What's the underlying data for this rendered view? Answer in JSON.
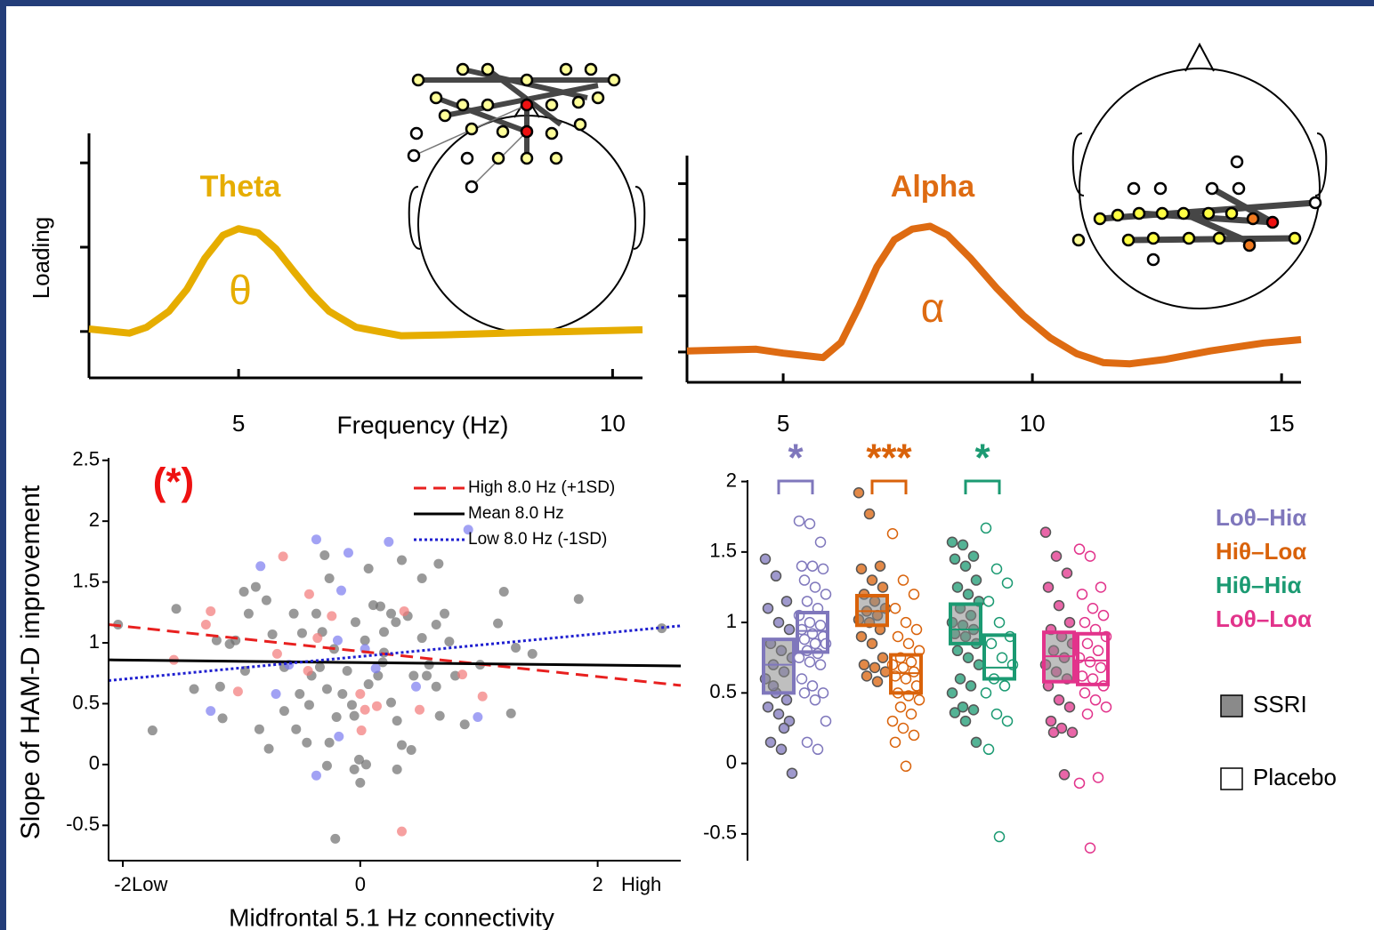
{
  "chart_data": [
    {
      "type": "line",
      "title": "Theta",
      "symbol": "θ",
      "ylabel": "Loading",
      "xlabel": "Frequency (Hz)",
      "color": "#e6ad00",
      "x": [
        3.0,
        3.54,
        3.77,
        4.07,
        4.31,
        4.55,
        4.79,
        5.0,
        5.26,
        5.5,
        5.74,
        5.98,
        6.21,
        6.57,
        7.17,
        7.76,
        8.95,
        10.4
      ],
      "values": [
        0.03,
        -0.02,
        0.05,
        0.24,
        0.5,
        0.87,
        1.14,
        1.22,
        1.17,
        0.98,
        0.71,
        0.45,
        0.24,
        0.05,
        -0.05,
        -0.04,
        -0.01,
        0.02
      ],
      "xlim": [
        3,
        10.4
      ],
      "xticks": [
        5,
        10
      ],
      "ylim": [
        -0.55,
        2.35
      ],
      "yticks": [
        0,
        1,
        2
      ]
    },
    {
      "type": "line",
      "title": "Alpha",
      "symbol": "α",
      "color": "#de6b12",
      "x": [
        3.07,
        4.46,
        5.0,
        5.8,
        6.16,
        6.52,
        6.88,
        7.23,
        7.59,
        7.95,
        8.3,
        8.75,
        9.29,
        9.82,
        10.36,
        10.89,
        11.43,
        11.96,
        12.68,
        13.57,
        14.64,
        15.39
      ],
      "values": [
        0.02,
        0.05,
        -0.02,
        -0.1,
        0.17,
        0.81,
        1.52,
        2.0,
        2.19,
        2.24,
        2.08,
        1.68,
        1.13,
        0.65,
        0.25,
        -0.03,
        -0.19,
        -0.21,
        -0.13,
        0.02,
        0.16,
        0.22
      ],
      "xlim": [
        3.07,
        15.39
      ],
      "xticks": [
        5,
        10,
        15
      ],
      "ylim": [
        -0.54,
        3.5
      ],
      "yticks": [
        0,
        1,
        2,
        3
      ]
    },
    {
      "type": "scatter",
      "ylabel": "Slope of HAM-D improvement",
      "xlabel": "Midfrontal 5.1 Hz connectivity",
      "annotation": "(*)",
      "x_low_label": "Low",
      "x_high_label": "High",
      "xlim": [
        -2.12,
        2.7
      ],
      "xticks": [
        -2,
        0,
        2
      ],
      "ylim": [
        -0.79,
        2.52
      ],
      "yticks": [
        -0.5,
        0,
        0.5,
        1,
        1.5,
        2,
        2.5
      ],
      "points": [
        {
          "color": "#6e6e6e",
          "x": [
            -2.04,
            -1.75,
            -1.55,
            -1.4,
            -1.18,
            -1.1,
            -0.98,
            -0.88,
            -0.79,
            -0.94,
            -0.85,
            -0.77,
            -0.74,
            -0.64,
            -0.56,
            -0.49,
            -0.51,
            -0.43,
            -0.54,
            -0.45,
            -0.3,
            -0.26,
            -0.37,
            -0.32,
            -0.22,
            -0.34,
            -0.28,
            -0.2,
            -0.28,
            -0.21,
            -0.11,
            -0.07,
            -0.05,
            -0.01,
            0,
            -0.05,
            0.05,
            0.07,
            0.11,
            0.17,
            0.2,
            0.26,
            0.3,
            0.2,
            0.15,
            0.26,
            0.31,
            0.35,
            0.43,
            0.31,
            0.35,
            0.4,
            0.52,
            0.66,
            0.64,
            0.52,
            0.58,
            0.64,
            0.67,
            0.75,
            0.8,
            0.88,
            1.01,
            1.16,
            1.21,
            1.27,
            1.31,
            1.45,
            1.84,
            2.54,
            0.56,
            0.71,
            0.19,
            0.07,
            0.45,
            -0.41,
            -0.64,
            -0.97,
            -1.05,
            -1.21,
            -1.16,
            -0.26,
            -0.15,
            0.04,
            -0.04
          ],
          "y": [
            1.15,
            0.28,
            1.28,
            0.62,
            0.64,
            0.99,
            1.42,
            1.46,
            1.35,
            1.24,
            0.29,
            0.13,
            1.07,
            0.44,
            1.24,
            1.08,
            0.58,
            0.49,
            0.29,
            0.18,
            1.72,
            1.53,
            1.24,
            1.09,
            0.95,
            0.8,
            0.62,
            0.39,
            -0.01,
            -0.61,
            0.77,
            0.49,
            0.4,
            0.04,
            -0.15,
            -0.04,
            0,
            1.61,
            1.31,
            1.3,
            1.09,
            1.24,
            1.17,
            0.92,
            0.73,
            0.51,
            0.36,
            0.16,
            0.12,
            -0.04,
            1.68,
            1.22,
            1.53,
            1.65,
            1.15,
            1.04,
            0.82,
            0.64,
            0.4,
            1.01,
            0.73,
            0.33,
            0.82,
            1.16,
            1.42,
            0.42,
            0.96,
            0.91,
            1.36,
            1.12,
            0.73,
            1.24,
            0.84,
            0.66,
            0.73,
            0.73,
            0.8,
            0.77,
            1.02,
            1.02,
            0.38,
            0.18,
            0.58,
            1.02,
            1.17
          ]
        },
        {
          "color": "#f27878",
          "x": [
            -0.65,
            -1.26,
            -1.3,
            -0.43,
            -0.24,
            -1.57,
            -1.03,
            -0.44,
            0,
            0.37,
            0.04,
            0.5,
            0.14,
            0.86,
            1.03,
            0.35,
            -0.36,
            0.01,
            -0.7
          ],
          "y": [
            1.71,
            1.26,
            1.15,
            1.4,
            1.22,
            0.86,
            0.6,
            0.77,
            0.58,
            1.26,
            0.45,
            0.45,
            0.48,
            0.74,
            0.56,
            -0.55,
            1.04,
            0.28,
            0.91
          ]
        },
        {
          "color": "#7b7bf0",
          "x": [
            -0.37,
            -0.1,
            0.24,
            -0.84,
            -0.16,
            0.91,
            -0.19,
            0.04,
            0.13,
            -0.71,
            0.47,
            -0.18,
            -0.37,
            -1.26,
            0.99,
            -0.6
          ],
          "y": [
            1.85,
            1.74,
            1.83,
            1.63,
            1.43,
            1.93,
            1.02,
            0.95,
            0.79,
            0.58,
            0.64,
            0.23,
            -0.09,
            0.44,
            0.39,
            0.82
          ]
        }
      ],
      "series": [
        {
          "name": "High 8.0 Hz (+1SD)",
          "color": "#e8201f",
          "dash": "dashed",
          "x": [
            -2.12,
            2.7
          ],
          "values": [
            1.15,
            0.65
          ]
        },
        {
          "name": "Mean 8.0 Hz",
          "color": "#000000",
          "dash": "solid",
          "x": [
            -2.12,
            2.7
          ],
          "values": [
            0.86,
            0.81
          ]
        },
        {
          "name": "Low 8.0 Hz (-1SD)",
          "color": "#1f1fd0",
          "dash": "dotted",
          "x": [
            -2.12,
            2.7
          ],
          "values": [
            0.69,
            1.14
          ]
        }
      ]
    },
    {
      "type": "box",
      "ylim": [
        -0.69,
        2.01
      ],
      "yticks": [
        -0.5,
        0,
        0.5,
        1,
        1.5,
        2
      ],
      "categories": [
        "Loθ–Hiα",
        "Hiθ–Loα",
        "Hiθ–Hiα",
        "Loθ–Loα"
      ],
      "colors": [
        "#7f77bc",
        "#d9620a",
        "#1b9a72",
        "#e2338b"
      ],
      "significance": [
        "*",
        "***",
        "*",
        null
      ],
      "series": [
        {
          "name": "SSRI",
          "fill": "#8a8a8a",
          "mean": [
            0.7,
            1.08,
            0.95,
            0.76
          ],
          "lower": [
            0.5,
            0.98,
            0.85,
            0.58
          ],
          "upper": [
            0.88,
            1.19,
            1.13,
            0.93
          ],
          "points": [
            [
              1.45,
              1.33,
              1.15,
              1.1,
              1.0,
              0.95,
              0.85,
              0.8,
              0.75,
              0.7,
              0.65,
              0.6,
              0.5,
              0.45,
              0.4,
              0.35,
              0.3,
              0.15,
              0.1,
              -0.07,
              0.55,
              0.25
            ],
            [
              1.92,
              1.77,
              1.4,
              1.38,
              1.3,
              1.25,
              1.2,
              1.15,
              1.1,
              1.08,
              1.05,
              1.02,
              1.0,
              0.95,
              0.9,
              0.85,
              0.75,
              0.7,
              0.68,
              0.65,
              0.62,
              0.58
            ],
            [
              1.57,
              1.55,
              1.47,
              1.45,
              1.4,
              1.3,
              1.25,
              1.2,
              1.15,
              1.1,
              1.05,
              1.0,
              0.98,
              0.95,
              0.92,
              0.9,
              0.85,
              0.8,
              0.75,
              0.7,
              0.6,
              0.55,
              0.5,
              0.4,
              0.38,
              0.36,
              0.3,
              0.15
            ],
            [
              1.64,
              1.47,
              1.35,
              1.25,
              1.12,
              1.0,
              0.95,
              0.9,
              0.85,
              0.8,
              0.75,
              0.7,
              0.65,
              0.6,
              0.55,
              0.45,
              0.4,
              0.3,
              0.25,
              0.22,
              0.22,
              -0.08
            ]
          ]
        },
        {
          "name": "Placebo",
          "fill": "#ffffff",
          "mean": [
            0.94,
            0.64,
            0.68,
            0.73
          ],
          "lower": [
            0.79,
            0.5,
            0.6,
            0.56
          ],
          "upper": [
            1.07,
            0.77,
            0.91,
            0.92
          ],
          "points": [
            [
              1.72,
              1.7,
              1.57,
              1.4,
              1.4,
              1.38,
              1.3,
              1.25,
              1.2,
              1.15,
              1.1,
              1.05,
              1.0,
              0.98,
              0.95,
              0.92,
              0.9,
              0.88,
              0.85,
              0.85,
              0.8,
              0.78,
              0.75,
              0.72,
              0.7,
              0.6,
              0.55,
              0.5,
              0.5,
              0.45,
              0.3,
              0.15,
              0.1
            ],
            [
              1.63,
              1.3,
              1.2,
              1.1,
              1.0,
              0.95,
              0.9,
              0.85,
              0.8,
              0.75,
              0.72,
              0.7,
              0.68,
              0.65,
              0.62,
              0.6,
              0.55,
              0.5,
              0.48,
              0.45,
              0.4,
              0.35,
              0.3,
              0.25,
              0.2,
              0.15,
              -0.02
            ],
            [
              1.67,
              1.38,
              1.28,
              1.15,
              1.0,
              0.9,
              0.85,
              0.75,
              0.7,
              0.6,
              0.55,
              0.5,
              0.35,
              0.3,
              0.1,
              -0.52
            ],
            [
              1.52,
              1.47,
              1.25,
              1.2,
              1.1,
              1.05,
              1.0,
              0.95,
              0.9,
              0.85,
              0.8,
              0.75,
              0.72,
              0.68,
              0.62,
              0.6,
              0.55,
              0.5,
              0.45,
              0.4,
              0.35,
              -0.1,
              -0.14,
              -0.6
            ]
          ]
        }
      ]
    }
  ]
}
